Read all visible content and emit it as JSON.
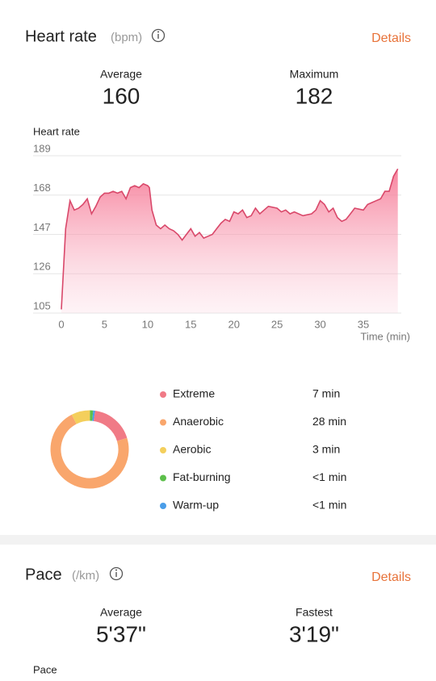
{
  "heart_rate": {
    "title": "Heart rate",
    "unit": "(bpm)",
    "details": "Details",
    "stats": [
      {
        "label": "Average",
        "value": "160"
      },
      {
        "label": "Maximum",
        "value": "182"
      }
    ]
  },
  "chart_data": [
    {
      "type": "line",
      "y_label": "Heart rate",
      "x_label": "Time (min)",
      "color": "#d9486a",
      "x": [
        0,
        0.5,
        1,
        1.5,
        2,
        2.5,
        3,
        3.5,
        4,
        4.5,
        5,
        5.5,
        6,
        6.5,
        7,
        7.5,
        8,
        8.5,
        9,
        9.5,
        10,
        10.2,
        10.5,
        11,
        11.5,
        12,
        12.5,
        13,
        13.5,
        14,
        14.5,
        15,
        15.5,
        16,
        16.5,
        17,
        17.5,
        18,
        18.5,
        19,
        19.5,
        20,
        20.5,
        21,
        21.5,
        22,
        22.5,
        23,
        23.5,
        24,
        25,
        25.5,
        26,
        26.5,
        27,
        28,
        29,
        29.5,
        30,
        30.5,
        31,
        31.5,
        32,
        32.5,
        33,
        33.5,
        34,
        35,
        35.5,
        36,
        36.5,
        37,
        37.5,
        38,
        38.5,
        39
      ],
      "values": [
        107,
        150,
        165,
        160,
        161,
        163,
        166,
        158,
        162,
        167,
        169,
        169,
        170,
        169,
        170,
        166,
        172,
        173,
        172,
        174,
        173,
        172,
        160,
        152,
        150,
        152,
        150,
        149,
        147,
        144,
        147,
        150,
        146,
        148,
        145,
        146,
        147,
        150,
        153,
        155,
        154,
        159,
        158,
        160,
        156,
        157,
        161,
        158,
        160,
        162,
        161,
        159,
        160,
        158,
        159,
        157,
        158,
        160,
        165,
        163,
        159,
        161,
        156,
        154,
        155,
        158,
        161,
        160,
        163,
        164,
        165,
        166,
        170,
        170,
        178,
        182
      ],
      "xlim": [
        0,
        39.4
      ],
      "xticks": [
        0,
        5,
        10,
        15,
        20,
        25,
        30,
        35
      ],
      "ylim": [
        105,
        189
      ],
      "yticks": [
        105,
        126,
        147,
        168,
        189
      ],
      "grid": true
    },
    {
      "type": "donut",
      "categories": [
        "Extreme",
        "Anaerobic",
        "Aerobic",
        "Fat-burning",
        "Warm-up"
      ],
      "values": [
        7,
        28,
        3,
        0.5,
        0.3
      ],
      "value_labels": [
        "7 min",
        "28 min",
        "3 min",
        "<1 min",
        "<1 min"
      ],
      "colors": [
        "#f07a86",
        "#f9a66c",
        "#f4cf5c",
        "#5cbf4a",
        "#4a9de8"
      ]
    }
  ],
  "pace": {
    "title": "Pace",
    "unit": "(/km)",
    "details": "Details",
    "stats": [
      {
        "label": "Average",
        "value": "5'37\""
      },
      {
        "label": "Fastest",
        "value": "3'19\""
      }
    ],
    "chart_label": "Pace"
  }
}
